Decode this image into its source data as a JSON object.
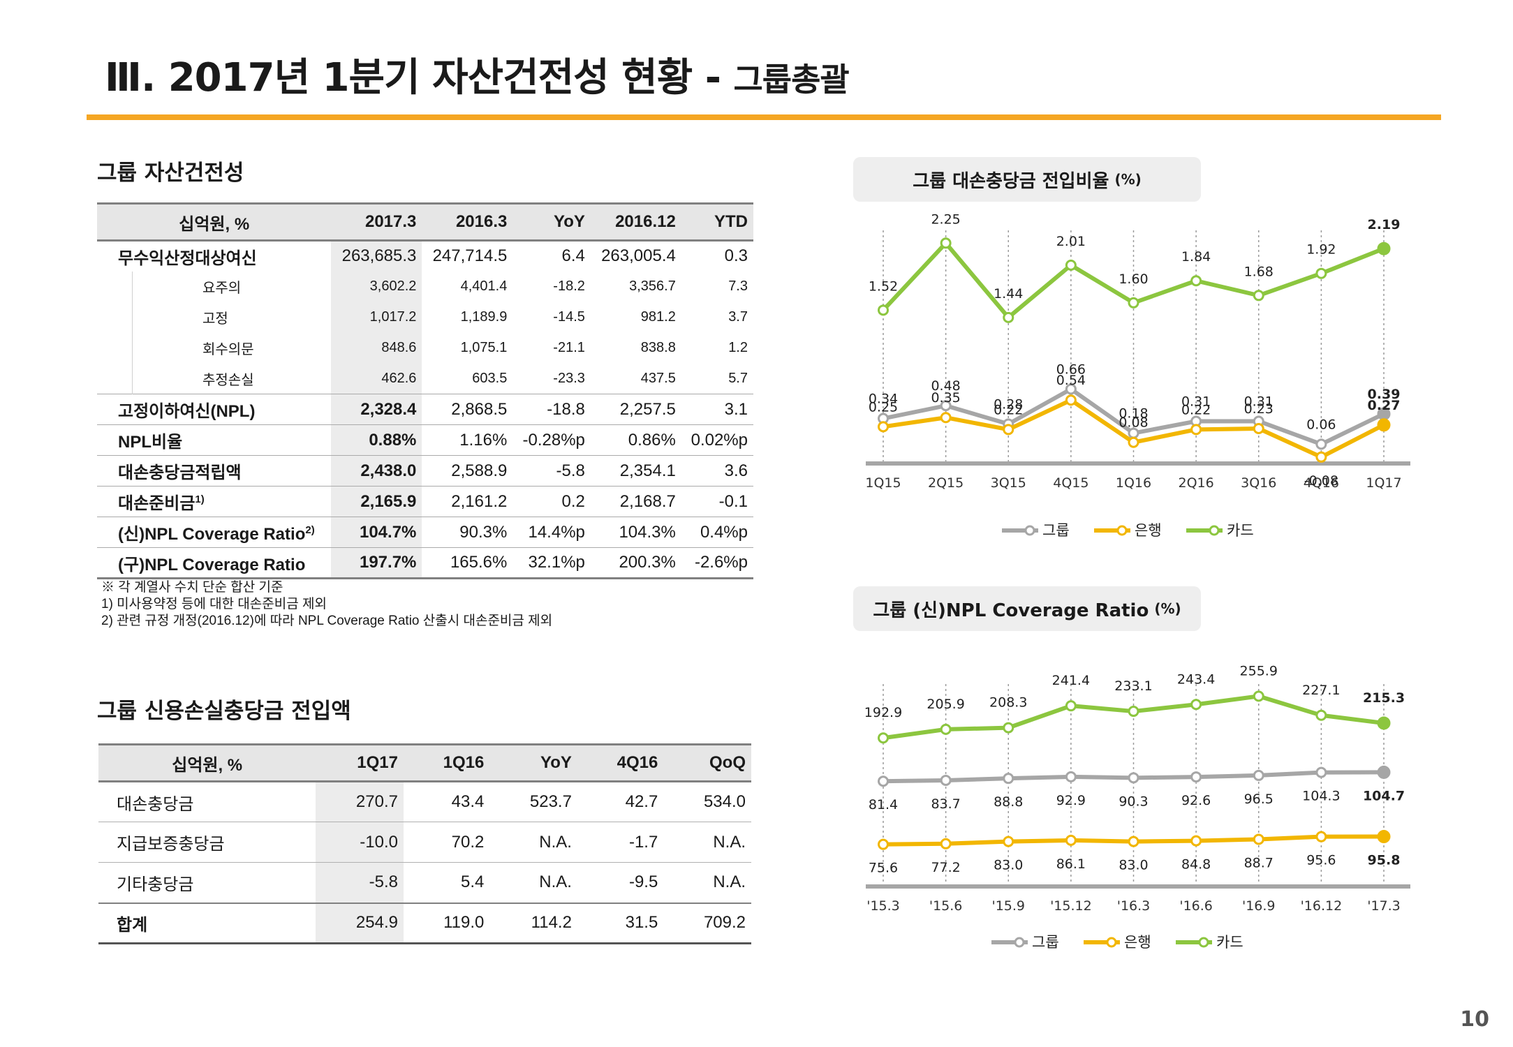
{
  "header": {
    "title": "Ⅲ. 2017년 1분기 자산건전성 현황 - ",
    "subtitle": "그룹총괄"
  },
  "assets": {
    "section_title": "그룹 자산건전성",
    "columns": [
      "십억원, %",
      "2017.3",
      "2016.3",
      "YoY",
      "2016.12",
      "YTD"
    ],
    "rows": [
      {
        "label": "무수익산정대상여신",
        "sup": "",
        "type": "main",
        "values": [
          "263,685.3",
          "247,714.5",
          "6.4",
          "263,005.4",
          "0.3"
        ]
      },
      {
        "label": "요주의",
        "sup": "",
        "type": "sub",
        "values": [
          "3,602.2",
          "4,401.4",
          "-18.2",
          "3,356.7",
          "7.3"
        ]
      },
      {
        "label": "고정",
        "sup": "",
        "type": "sub",
        "values": [
          "1,017.2",
          "1,189.9",
          "-14.5",
          "981.2",
          "3.7"
        ]
      },
      {
        "label": "회수의문",
        "sup": "",
        "type": "sub",
        "values": [
          "848.6",
          "1,075.1",
          "-21.1",
          "838.8",
          "1.2"
        ]
      },
      {
        "label": "추정손실",
        "sup": "",
        "type": "sub",
        "values": [
          "462.6",
          "603.5",
          "-23.3",
          "437.5",
          "5.7"
        ]
      },
      {
        "label": "고정이하여신(NPL)",
        "sup": "",
        "type": "main",
        "values": [
          "2,328.4",
          "2,868.5",
          "-18.8",
          "2,257.5",
          "3.1"
        ]
      },
      {
        "label": "NPL비율",
        "sup": "",
        "type": "main",
        "values": [
          "0.88%",
          "1.16%",
          "-0.28%p",
          "0.86%",
          "0.02%p"
        ]
      },
      {
        "label": "대손충당금적립액",
        "sup": "",
        "type": "main",
        "values": [
          "2,438.0",
          "2,588.9",
          "-5.8",
          "2,354.1",
          "3.6"
        ]
      },
      {
        "label": "대손준비금",
        "sup": "1)",
        "type": "main",
        "values": [
          "2,165.9",
          "2,161.2",
          "0.2",
          "2,168.7",
          "-0.1"
        ]
      },
      {
        "label": "(신)NPL Coverage Ratio",
        "sup": "2)",
        "type": "main",
        "values": [
          "104.7%",
          "90.3%",
          "14.4%p",
          "104.3%",
          "0.4%p"
        ]
      },
      {
        "label": "(구)NPL Coverage Ratio",
        "sup": "",
        "type": "main",
        "values": [
          "197.7%",
          "165.6%",
          "32.1%p",
          "200.3%",
          "-2.6%p"
        ]
      }
    ],
    "notes": [
      "※ 각 계열사 수치 단순 합산 기준",
      "1) 미사용약정 등에 대한 대손준비금 제외",
      "2) 관련 규정 개정(2016.12)에 따라 NPL Coverage Ratio 산출시 대손준비금 제외"
    ]
  },
  "provision": {
    "section_title": "그룹 신용손실충당금 전입액",
    "columns": [
      "십억원, %",
      "1Q17",
      "1Q16",
      "YoY",
      "4Q16",
      "QoQ"
    ],
    "rows": [
      {
        "label": "대손충당금",
        "values": [
          "270.7",
          "43.4",
          "523.7",
          "42.7",
          "534.0"
        ]
      },
      {
        "label": "지급보증충당금",
        "values": [
          "-10.0",
          "70.2",
          "N.A.",
          "-1.7",
          "N.A."
        ]
      },
      {
        "label": "기타충당금",
        "values": [
          "-5.8",
          "5.4",
          "N.A.",
          "-9.5",
          "N.A."
        ]
      }
    ],
    "total": {
      "label": "합계",
      "values": [
        "254.9",
        "119.0",
        "114.2",
        "31.5",
        "709.2"
      ]
    }
  },
  "chart_data": [
    {
      "type": "line",
      "title": "그룹 대손충당금 전입비율",
      "unit": "(%)",
      "categories": [
        "1Q15",
        "2Q15",
        "3Q15",
        "4Q15",
        "1Q16",
        "2Q16",
        "3Q16",
        "4Q16",
        "1Q17"
      ],
      "ylim": [
        -0.15,
        2.45
      ],
      "legend_position": "bottom",
      "series": [
        {
          "name": "그룹",
          "color": "#a6a6a6",
          "values": [
            0.34,
            0.48,
            0.28,
            0.66,
            0.18,
            0.31,
            0.31,
            0.06,
            0.39
          ],
          "labels": [
            "0.34",
            "0.48",
            "0.28",
            "0.66",
            "0.18",
            "0.31",
            "0.31",
            "0.06",
            "0.39"
          ]
        },
        {
          "name": "은행",
          "color": "#f2b600",
          "values": [
            0.25,
            0.35,
            0.22,
            0.54,
            0.08,
            0.22,
            0.23,
            -0.08,
            0.27
          ],
          "labels": [
            "0.25",
            "0.35",
            "0.22",
            "0.54",
            "0.08",
            "0.22",
            "0.23",
            "-0.08",
            "0.27"
          ]
        },
        {
          "name": "카드",
          "color": "#8cc63f",
          "values": [
            1.52,
            2.25,
            1.44,
            2.01,
            1.6,
            1.84,
            1.68,
            1.92,
            2.19
          ],
          "labels": [
            "1.52",
            "2.25",
            "1.44",
            "2.01",
            "1.60",
            "1.84",
            "1.68",
            "1.92",
            "2.19"
          ]
        }
      ]
    },
    {
      "type": "line",
      "title": "그룹 (신)NPL Coverage Ratio",
      "unit": "(%)",
      "categories": [
        "'15.3",
        "'15.6",
        "'15.9",
        "'15.12",
        "'16.3",
        "'16.6",
        "'16.9",
        "'16.12",
        "'17.3"
      ],
      "legend_position": "bottom",
      "series": [
        {
          "name": "그룹",
          "color": "#a6a6a6",
          "values": [
            81.4,
            83.7,
            88.8,
            92.9,
            90.3,
            92.6,
            96.5,
            104.3,
            104.7
          ],
          "labels": [
            "81.4",
            "83.7",
            "88.8",
            "92.9",
            "90.3",
            "92.6",
            "96.5",
            "104.3",
            "104.7"
          ]
        },
        {
          "name": "은행",
          "color": "#f2b600",
          "values": [
            75.6,
            77.2,
            83.0,
            86.1,
            83.0,
            84.8,
            88.7,
            95.6,
            95.8
          ],
          "labels": [
            "75.6",
            "77.2",
            "83.0",
            "86.1",
            "83.0",
            "84.8",
            "88.7",
            "95.6",
            "95.8"
          ]
        },
        {
          "name": "카드",
          "color": "#8cc63f",
          "values": [
            192.9,
            205.9,
            208.3,
            241.4,
            233.1,
            243.4,
            255.9,
            227.1,
            215.3
          ],
          "labels": [
            "192.9",
            "205.9",
            "208.3",
            "241.4",
            "233.1",
            "243.4",
            "255.9",
            "227.1",
            "215.3"
          ]
        }
      ]
    }
  ],
  "page_number": "10"
}
